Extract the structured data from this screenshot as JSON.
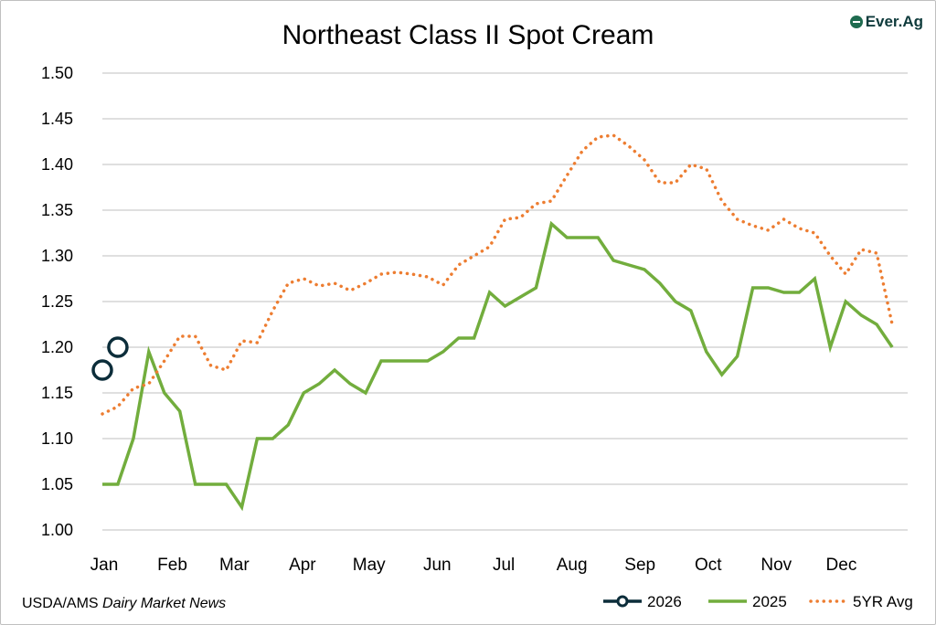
{
  "logo": {
    "text": "Ever.Ag",
    "color": "#1f6b4f"
  },
  "source": {
    "prefix": "USDA/AMS",
    "italic": "Dairy Market News"
  },
  "chart_data": {
    "type": "line",
    "title": "Northeast Class II Spot Cream",
    "xlabel": "",
    "ylabel": "",
    "x_range": [
      0,
      52
    ],
    "ylim": [
      1.0,
      1.5
    ],
    "y_ticks": [
      "1.00",
      "1.05",
      "1.10",
      "1.15",
      "1.20",
      "1.25",
      "1.30",
      "1.35",
      "1.40",
      "1.45",
      "1.50"
    ],
    "months": [
      {
        "label": "Jan",
        "x": 0
      },
      {
        "label": "Feb",
        "x": 4.4
      },
      {
        "label": "Mar",
        "x": 8.4
      },
      {
        "label": "Apr",
        "x": 12.8
      },
      {
        "label": "May",
        "x": 17.1
      },
      {
        "label": "Jun",
        "x": 21.5
      },
      {
        "label": "Jul",
        "x": 25.8
      },
      {
        "label": "Aug",
        "x": 30.2
      },
      {
        "label": "Sep",
        "x": 34.6
      },
      {
        "label": "Oct",
        "x": 39.0
      },
      {
        "label": "Nov",
        "x": 43.4
      },
      {
        "label": "Dec",
        "x": 47.6
      }
    ],
    "grid": true,
    "legend_position": "bottom-right",
    "series": [
      {
        "name": "2026",
        "color": "#0c2d3a",
        "style": "marker",
        "x": [
          0,
          1
        ],
        "values": [
          1.175,
          1.2
        ]
      },
      {
        "name": "2025",
        "color": "#72ad3d",
        "style": "solid",
        "x": [
          0,
          1,
          2,
          3,
          4,
          5,
          6,
          7,
          8,
          9,
          10,
          11,
          12,
          13,
          14,
          15,
          16,
          17,
          18,
          19,
          20,
          21,
          22,
          23,
          24,
          25,
          26,
          27,
          28,
          29,
          30,
          31,
          32,
          33,
          34,
          35,
          36,
          37,
          38,
          39,
          40,
          41,
          42,
          43,
          44,
          45,
          46,
          47,
          48,
          49,
          50,
          51
        ],
        "values": [
          1.05,
          1.05,
          1.1,
          1.195,
          1.15,
          1.13,
          1.05,
          1.05,
          1.05,
          1.025,
          1.1,
          1.1,
          1.115,
          1.15,
          1.16,
          1.175,
          1.16,
          1.15,
          1.185,
          1.185,
          1.185,
          1.185,
          1.195,
          1.21,
          1.21,
          1.26,
          1.245,
          1.255,
          1.265,
          1.335,
          1.32,
          1.32,
          1.32,
          1.295,
          1.29,
          1.285,
          1.27,
          1.25,
          1.24,
          1.195,
          1.17,
          1.19,
          1.265,
          1.265,
          1.26,
          1.26,
          1.275,
          1.2,
          1.25,
          1.235,
          1.225,
          1.2
        ]
      },
      {
        "name": "5YR Avg",
        "color": "#ed7d31",
        "style": "dotted",
        "x": [
          0,
          1,
          2,
          3,
          4,
          5,
          6,
          7,
          8,
          9,
          10,
          11,
          12,
          13,
          14,
          15,
          16,
          17,
          18,
          19,
          20,
          21,
          22,
          23,
          24,
          25,
          26,
          27,
          28,
          29,
          30,
          31,
          32,
          33,
          34,
          35,
          36,
          37,
          38,
          39,
          40,
          41,
          42,
          43,
          44,
          45,
          46,
          47,
          48,
          49,
          50,
          51
        ],
        "values": [
          1.127,
          1.135,
          1.155,
          1.16,
          1.185,
          1.212,
          1.212,
          1.18,
          1.175,
          1.207,
          1.205,
          1.24,
          1.27,
          1.275,
          1.267,
          1.27,
          1.262,
          1.27,
          1.28,
          1.282,
          1.28,
          1.277,
          1.268,
          1.29,
          1.3,
          1.31,
          1.34,
          1.342,
          1.357,
          1.36,
          1.388,
          1.415,
          1.43,
          1.432,
          1.42,
          1.405,
          1.38,
          1.38,
          1.4,
          1.395,
          1.36,
          1.34,
          1.333,
          1.328,
          1.34,
          1.33,
          1.325,
          1.3,
          1.28,
          1.307,
          1.303,
          1.225
        ]
      }
    ]
  }
}
